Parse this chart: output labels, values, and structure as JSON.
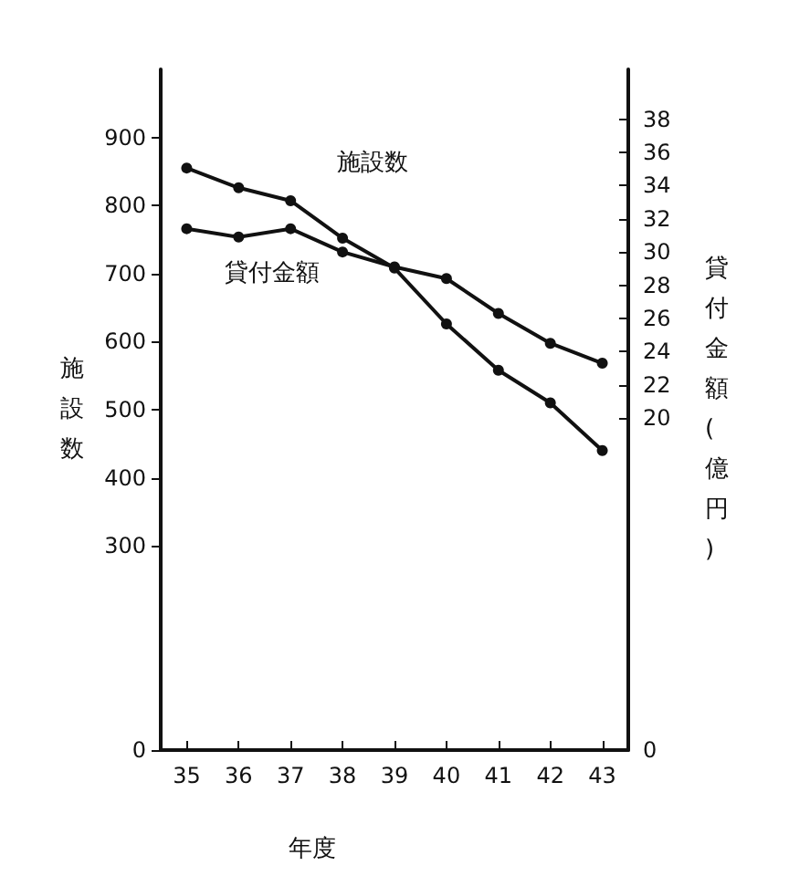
{
  "chart_data": {
    "type": "line",
    "categories": [
      "35",
      "36",
      "37",
      "38",
      "39",
      "40",
      "41",
      "42",
      "43"
    ],
    "series": [
      {
        "name": "施設数",
        "color": "#111111",
        "values": [
          855,
          826,
          807,
          752,
          708,
          626,
          558,
          510,
          440
        ]
      },
      {
        "name": "貸付金額",
        "color": "#111111",
        "axis": "y2",
        "values": [
          31.4,
          30.9,
          31.4,
          30,
          29.1,
          28.4,
          26.3,
          24.5,
          23.3
        ]
      }
    ],
    "xlabel": "年度",
    "ylabel": "施設数",
    "y2label": "貸付金額(億円)",
    "ylim": [
      0,
      1000
    ],
    "yticks": [
      0,
      300,
      400,
      500,
      600,
      700,
      800,
      900
    ],
    "y2lim": [
      0,
      41
    ],
    "y2ticks": [
      0,
      20,
      22,
      24,
      26,
      28,
      30,
      32,
      34,
      36,
      38
    ],
    "marker": "circle",
    "line_style": "solid",
    "legend": false,
    "grid": false
  }
}
